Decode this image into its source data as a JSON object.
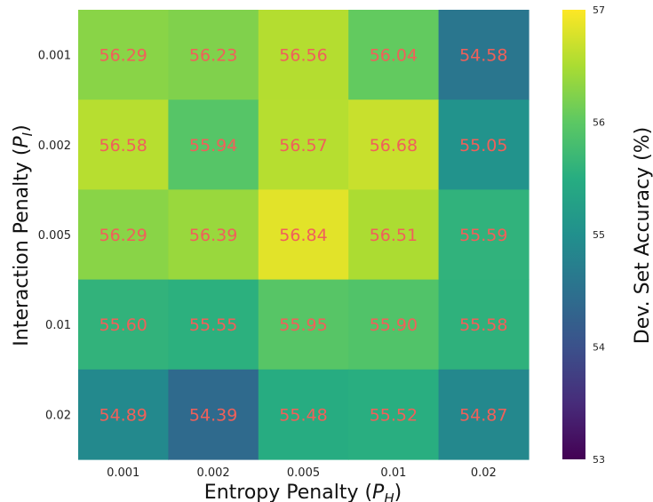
{
  "chart_data": {
    "type": "heatmap",
    "xlabel": "Entropy Penalty (",
    "xlabel_var": "P",
    "xlabel_sub": "H",
    "xlabel_end": ")",
    "ylabel": "Interaction Penalty (",
    "ylabel_var": "P",
    "ylabel_sub": "I",
    "ylabel_end": ")",
    "x_categories": [
      "0.001",
      "0.002",
      "0.005",
      "0.01",
      "0.02"
    ],
    "y_categories": [
      "0.001",
      "0.002",
      "0.005",
      "0.01",
      "0.02"
    ],
    "values": [
      [
        56.29,
        56.23,
        56.56,
        56.04,
        54.58
      ],
      [
        56.58,
        55.94,
        56.57,
        56.68,
        55.05
      ],
      [
        56.29,
        56.39,
        56.84,
        56.51,
        55.59
      ],
      [
        55.6,
        55.55,
        55.95,
        55.9,
        55.58
      ],
      [
        54.89,
        54.39,
        55.48,
        55.52,
        54.87
      ]
    ],
    "value_labels": [
      [
        "56.29",
        "56.23",
        "56.56",
        "56.04",
        "54.58"
      ],
      [
        "56.58",
        "55.94",
        "56.57",
        "56.68",
        "55.05"
      ],
      [
        "56.29",
        "56.39",
        "56.84",
        "56.51",
        "55.59"
      ],
      [
        "55.60",
        "55.55",
        "55.95",
        "55.90",
        "55.58"
      ],
      [
        "54.89",
        "54.39",
        "55.48",
        "55.52",
        "54.87"
      ]
    ],
    "colorbar": {
      "label": "Dev. Set Accuracy (%)",
      "range": [
        53,
        57
      ],
      "ticks": [
        "53",
        "54",
        "55",
        "56",
        "57"
      ],
      "colormap": "viridis"
    },
    "annotation_color": "#f0605a"
  }
}
